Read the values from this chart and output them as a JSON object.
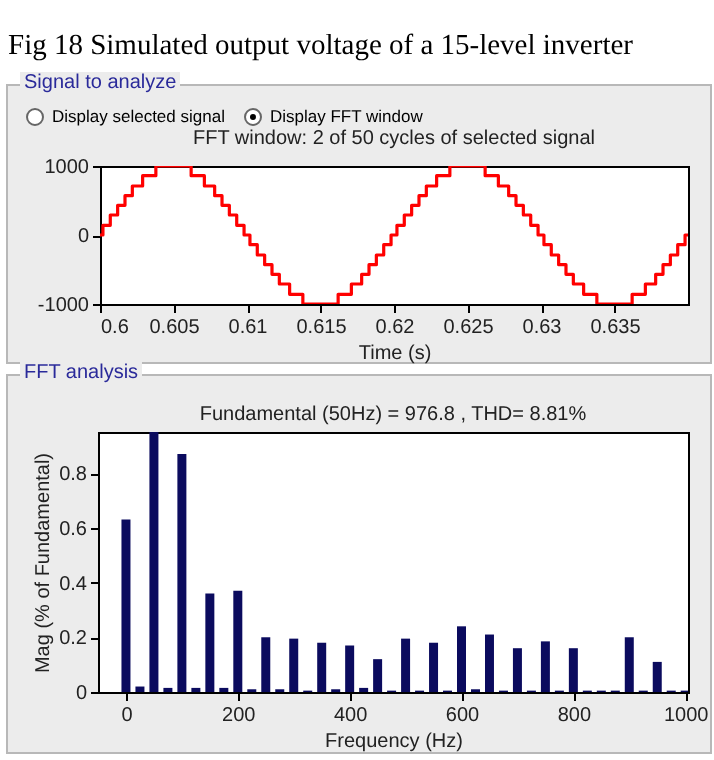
{
  "chart_data": [
    {
      "type": "step",
      "title": "FFT window: 2 of 50 cycles of selected signal",
      "xlabel": "Time (s)",
      "annotations": [
        "Fig 18 Simulated output voltage of a 15-level inverter",
        "Signal to analyze",
        "Display selected signal",
        "Display FFT window"
      ],
      "xlim": [
        0.6,
        0.64
      ],
      "xticks": [
        0.6,
        0.605,
        0.61,
        0.615,
        0.62,
        0.625,
        0.63,
        0.635
      ],
      "ylim": [
        -1000,
        1000
      ],
      "yticks": [
        -1000,
        0,
        1000
      ],
      "x": [
        0.6,
        0.6002,
        0.6007,
        0.6012,
        0.6017,
        0.6022,
        0.6029,
        0.6038,
        0.6062,
        0.6071,
        0.6078,
        0.6083,
        0.6088,
        0.6093,
        0.6098,
        0.6102,
        0.6107,
        0.6112,
        0.6117,
        0.6122,
        0.6129,
        0.6138,
        0.6162,
        0.6171,
        0.6178,
        0.6183,
        0.6188,
        0.6193,
        0.6198,
        0.6202,
        0.6207,
        0.6212,
        0.6217,
        0.6222,
        0.6229,
        0.6238,
        0.6262,
        0.6271,
        0.6278,
        0.6283,
        0.6288,
        0.6293,
        0.6298,
        0.6302,
        0.6307,
        0.6312,
        0.6317,
        0.6322,
        0.6329,
        0.6338,
        0.6362,
        0.6371,
        0.6378,
        0.6383,
        0.6388,
        0.6393,
        0.6398,
        0.64
      ],
      "series": [
        {
          "color": "#ff0000",
          "values": [
            0,
            140,
            290,
            430,
            570,
            710,
            860,
            1000,
            860,
            710,
            570,
            430,
            290,
            140,
            0,
            -140,
            -290,
            -430,
            -570,
            -710,
            -860,
            -1000,
            -860,
            -710,
            -570,
            -430,
            -290,
            -140,
            0,
            140,
            290,
            430,
            570,
            710,
            860,
            1000,
            860,
            710,
            570,
            430,
            290,
            140,
            0,
            -140,
            -290,
            -430,
            -570,
            -710,
            -860,
            -1000,
            -860,
            -710,
            -570,
            -430,
            -290,
            -140,
            0,
            0
          ]
        }
      ]
    },
    {
      "type": "bar",
      "title": "Fundamental (50Hz) = 976.8 , THD= 8.81%",
      "xlabel": "Frequency (Hz)",
      "ylabel": "Mag (% of Fundamental)",
      "annotations": [
        "FFT analysis"
      ],
      "xlim": [
        -50,
        1005
      ],
      "xticks": [
        0,
        200,
        400,
        600,
        800,
        1000
      ],
      "ylim": [
        0,
        0.95
      ],
      "yticks": [
        0,
        0.2,
        0.4,
        0.6,
        0.8
      ],
      "x": [
        0,
        25,
        50,
        75,
        100,
        125,
        150,
        175,
        200,
        225,
        250,
        275,
        300,
        325,
        350,
        375,
        400,
        425,
        450,
        475,
        500,
        525,
        550,
        575,
        600,
        625,
        650,
        675,
        700,
        725,
        750,
        775,
        800,
        825,
        850,
        875,
        900,
        925,
        950,
        975,
        1000
      ],
      "series": [
        {
          "color": "#0b0b5e",
          "values": [
            0.63,
            0.02,
            0.95,
            0.015,
            0.87,
            0.015,
            0.36,
            0.015,
            0.37,
            0.01,
            0.2,
            0.01,
            0.195,
            0.005,
            0.18,
            0.01,
            0.17,
            0.015,
            0.12,
            0.005,
            0.195,
            0.005,
            0.18,
            0.005,
            0.24,
            0.01,
            0.21,
            0.005,
            0.16,
            0.005,
            0.185,
            0.005,
            0.16,
            0.005,
            0.005,
            0.005,
            0.2,
            0.005,
            0.11,
            0.005,
            0.005
          ]
        }
      ]
    }
  ]
}
